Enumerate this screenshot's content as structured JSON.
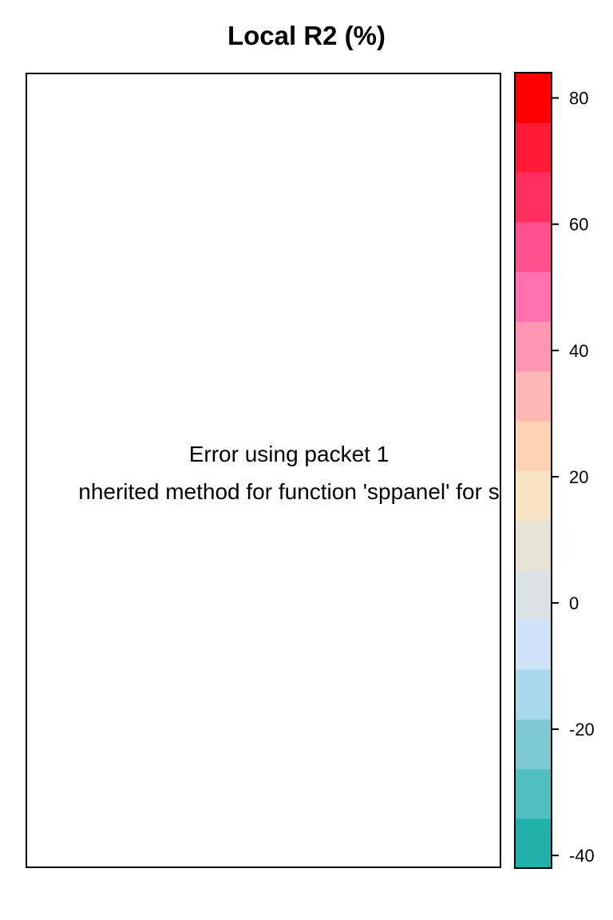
{
  "chart_data": {
    "type": "heatmap",
    "title": "Local R2 (%)",
    "panel_messages": [
      "Error using packet 1",
      "nherited method for function 'sppanel' for s"
    ],
    "colorkey": {
      "range": [
        -42,
        84
      ],
      "ticks": [
        80,
        60,
        40,
        20,
        0,
        -20,
        -40
      ],
      "tick_labels": [
        "80",
        "60",
        "40",
        "20",
        "0",
        "-20",
        "-40"
      ],
      "colors_bottom_to_top": [
        "#20B2AA",
        "#50BFC2",
        "#7DCAD5",
        "#A8D8EC",
        "#CFE3F8",
        "#DBE2E5",
        "#E9E3D5",
        "#F8E4C4",
        "#FED3B3",
        "#FFB7B5",
        "#FF95B2",
        "#FF70AE",
        "#FF508D",
        "#FF2E5C",
        "#FF1A36",
        "#FF0000"
      ]
    }
  }
}
